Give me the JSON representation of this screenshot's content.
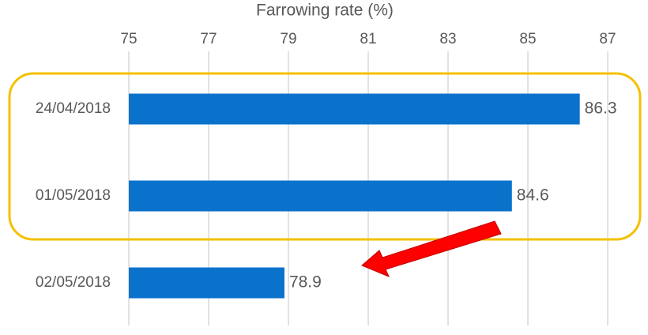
{
  "chart_data": {
    "type": "bar",
    "orientation": "horizontal",
    "x_label": "Farrowing rate (%)",
    "categories": [
      "24/04/2018",
      "01/05/2018",
      "02/05/2018"
    ],
    "values": [
      86.3,
      84.6,
      78.9
    ],
    "color": "#0b72cc",
    "xlim": [
      75,
      87
    ],
    "xticks": [
      75,
      77,
      79,
      81,
      83,
      85,
      87
    ],
    "grid": true
  }
}
